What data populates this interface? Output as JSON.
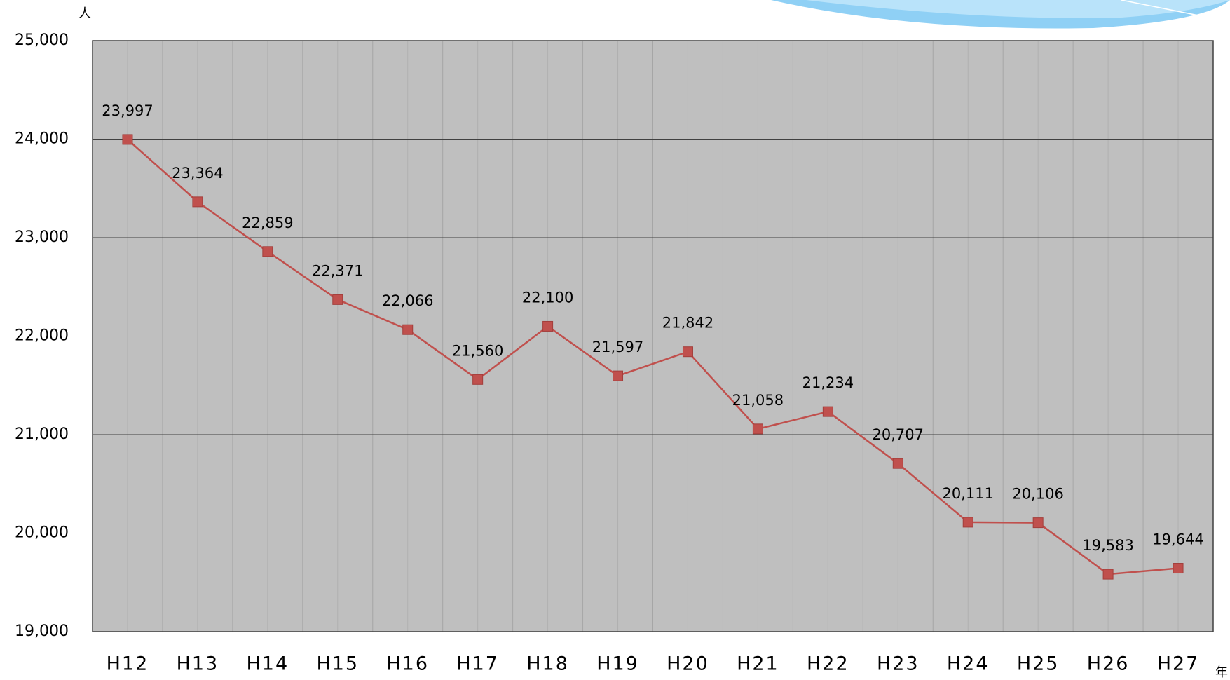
{
  "chart_data": {
    "type": "line",
    "y_unit": "人",
    "x_unit": "年",
    "categories": [
      "H12",
      "H13",
      "H14",
      "H15",
      "H16",
      "H17",
      "H18",
      "H19",
      "H20",
      "H21",
      "H22",
      "H23",
      "H24",
      "H25",
      "H26",
      "H27"
    ],
    "series": [
      {
        "color": "#c0504d",
        "values": [
          23997,
          23364,
          22859,
          22371,
          22066,
          21560,
          22100,
          21597,
          21842,
          21058,
          21234,
          20707,
          20111,
          20106,
          19583,
          19644
        ],
        "value_labels": [
          "23,997",
          "23,364",
          "22,859",
          "22,371",
          "22,066",
          "21,560",
          "22,100",
          "21,597",
          "21,842",
          "21,058",
          "21,234",
          "20,707",
          "20,111",
          "20,106",
          "19,583",
          "19,644"
        ]
      }
    ],
    "ylim": [
      19000,
      25000
    ],
    "yticks": [
      {
        "value": 19000,
        "label": "19,000"
      },
      {
        "value": 20000,
        "label": "20,000"
      },
      {
        "value": 21000,
        "label": "21,000"
      },
      {
        "value": 22000,
        "label": "22,000"
      },
      {
        "value": 23000,
        "label": "23,000"
      },
      {
        "value": 24000,
        "label": "24,000"
      },
      {
        "value": 25000,
        "label": "25,000"
      }
    ],
    "grid": true
  }
}
